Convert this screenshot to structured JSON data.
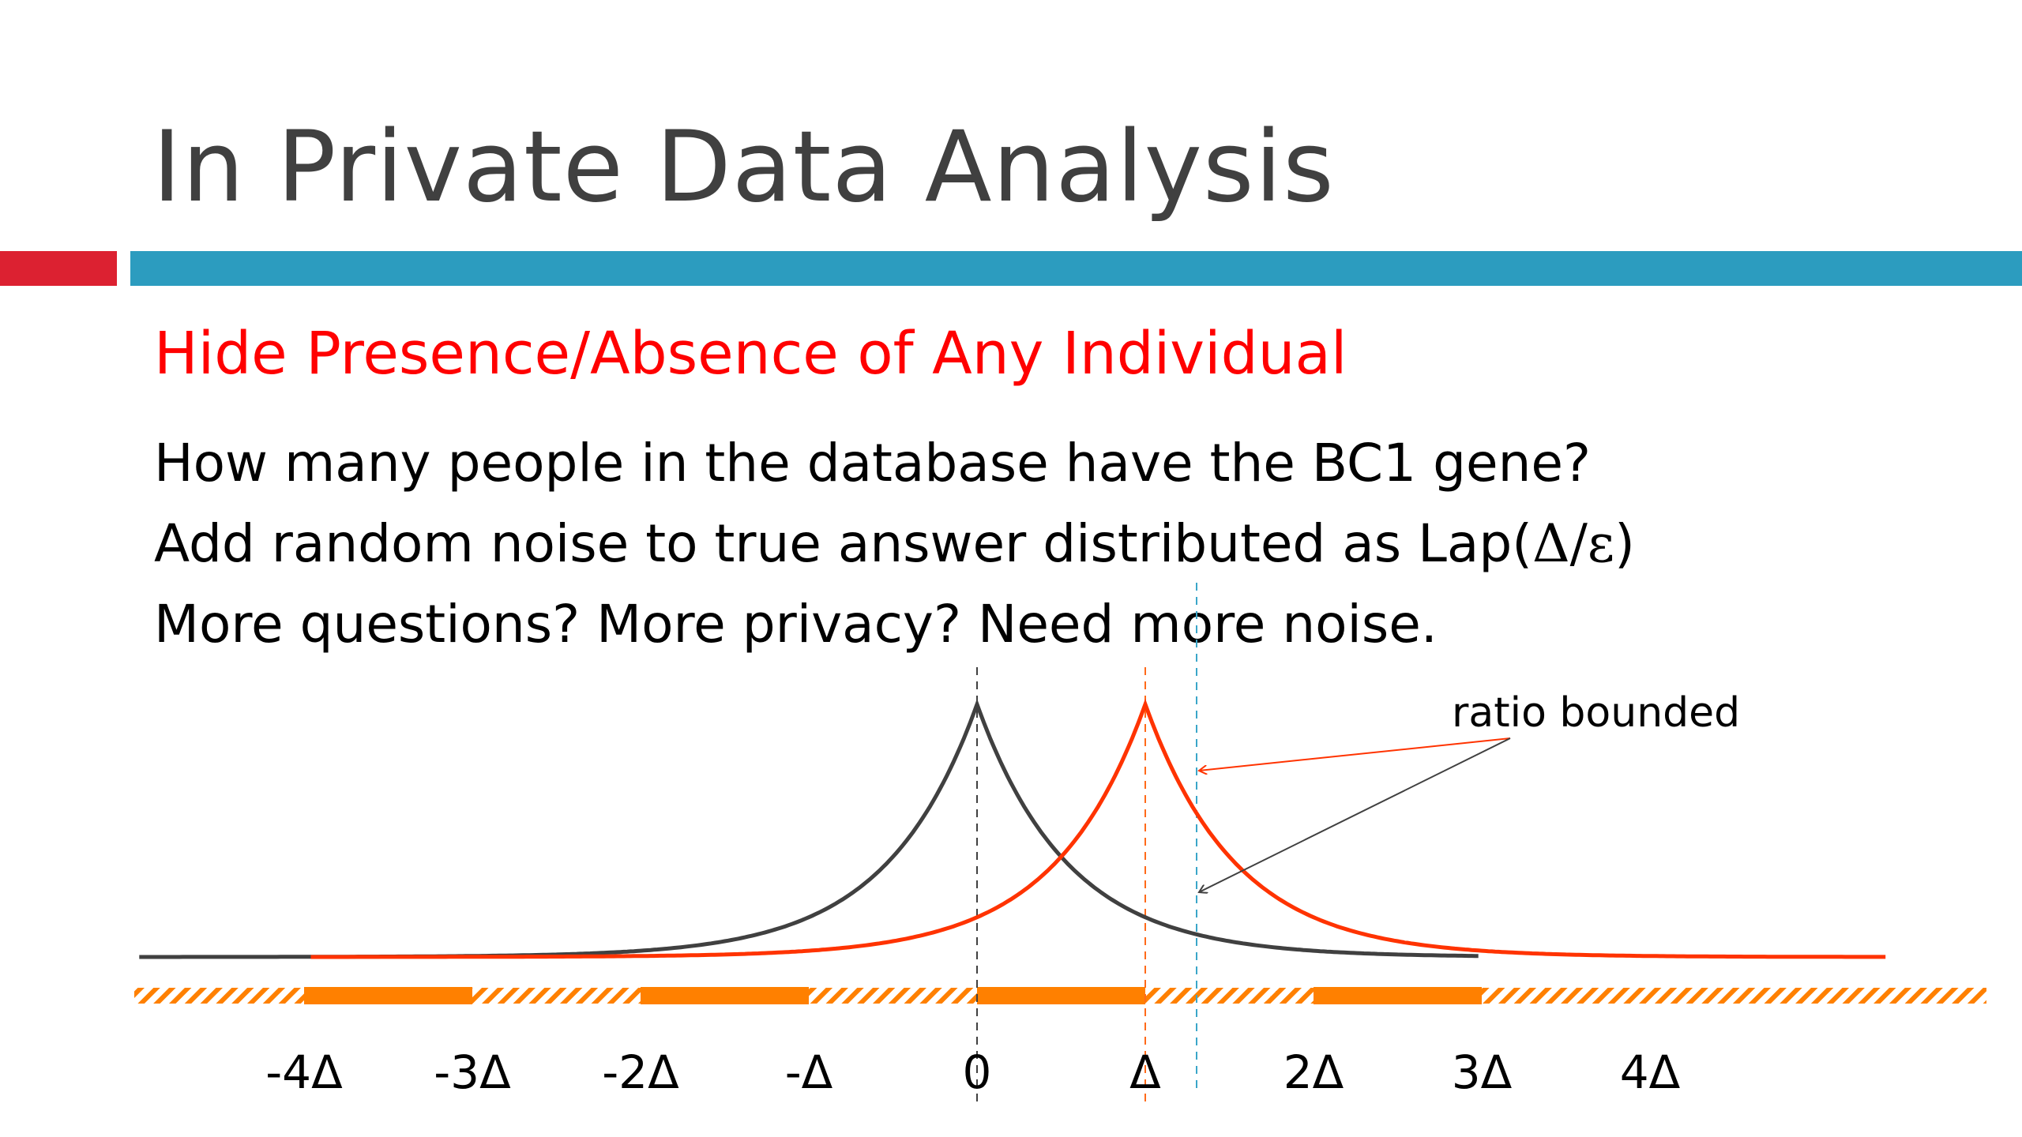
{
  "slide": {
    "title": "In Private Data Analysis",
    "subtitle": "Hide Presence/Absence of Any Individual",
    "lines": [
      {
        "text": "How many people in the database have the BC1 gene?"
      },
      {
        "text_prefix": "Add random noise to true answer distributed as Lap(",
        "math": "Δ/ε",
        "text_suffix": ")"
      },
      {
        "text": "More questions? More privacy? Need more noise."
      }
    ]
  },
  "diagram": {
    "annotation": "ratio bounded",
    "axis_labels": [
      "-4Δ",
      "-3Δ",
      "-2Δ",
      "-Δ",
      "0",
      "Δ",
      "2Δ",
      "3Δ",
      "4Δ"
    ],
    "curves": [
      {
        "center": 0,
        "color": "#404040"
      },
      {
        "center": 1,
        "color": "#ff3300"
      }
    ],
    "colors": {
      "axis": "#ff8000",
      "accent_red": "#dc2131",
      "accent_teal": "#2c9cbf",
      "arrow_red": "#ff3300",
      "arrow_dark": "#404040",
      "marker_teal": "#3aa6c9"
    }
  }
}
